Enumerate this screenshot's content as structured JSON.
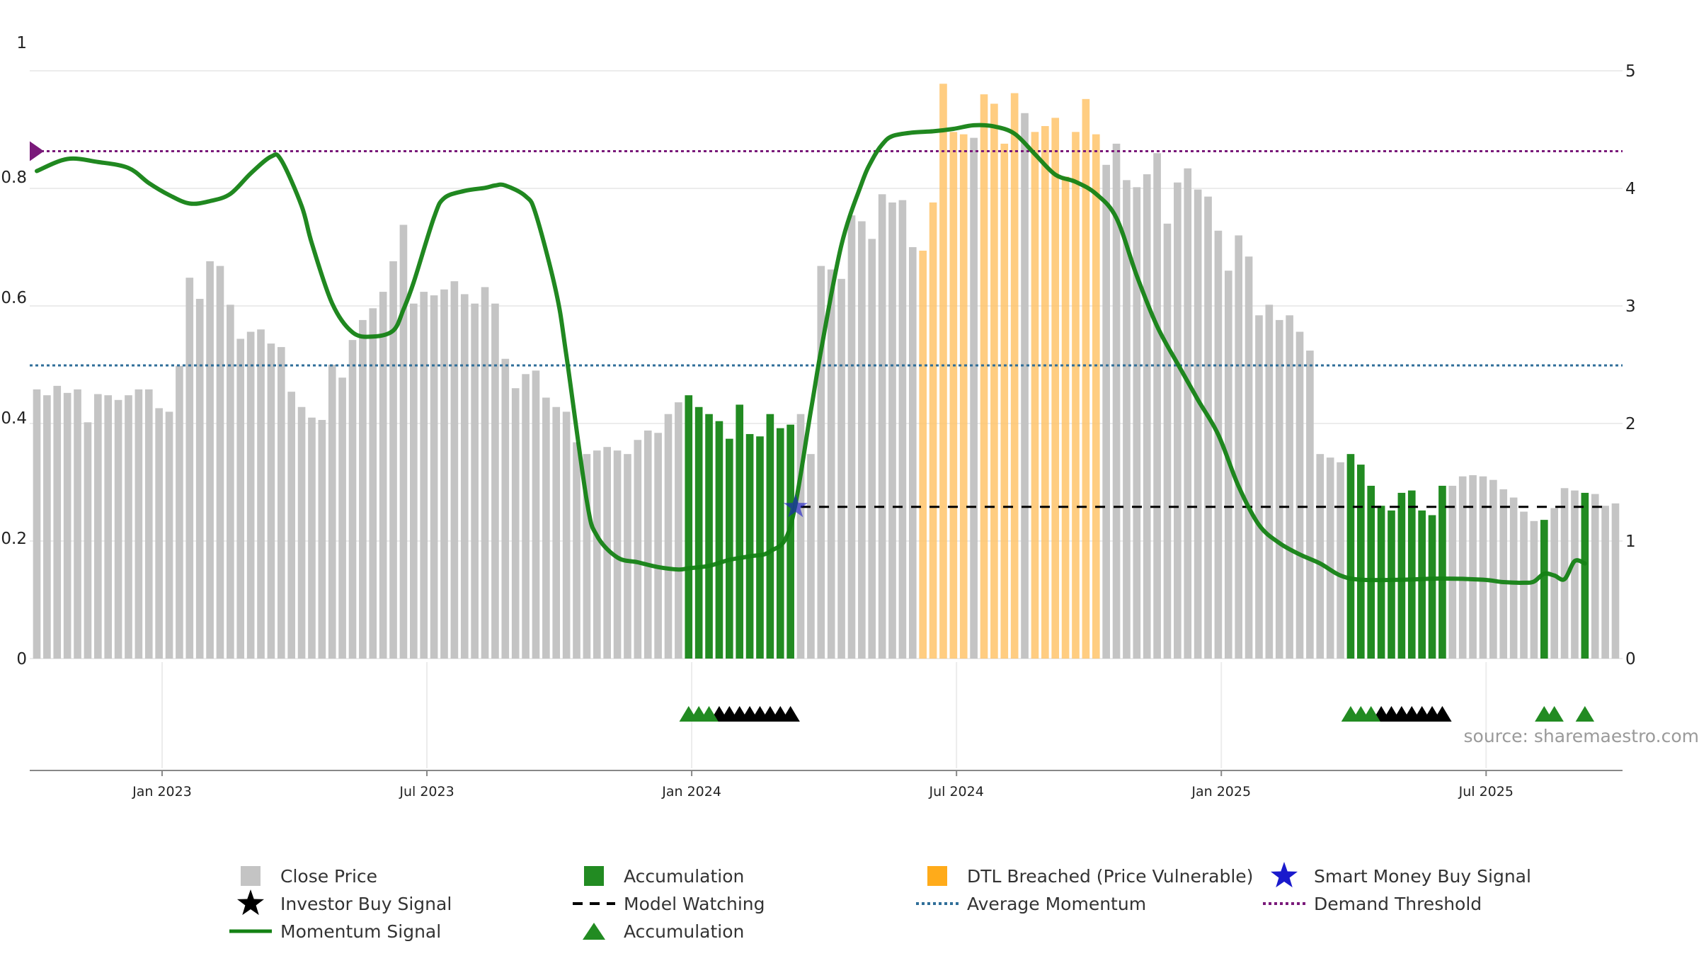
{
  "chart_data": {
    "type": "bar",
    "title": "",
    "xlabel": "",
    "ylabel": "",
    "y_left_ticks": [
      "0",
      "0.2",
      "0.4",
      "0.6",
      "0.8",
      "1"
    ],
    "y_left_range": [
      0,
      1
    ],
    "y_right_ticks": [
      "0",
      "1",
      "2",
      "3",
      "4",
      "5"
    ],
    "y_right_range": [
      0,
      5
    ],
    "x_ticks": [
      "Jan 2023",
      "Jul 2023",
      "Jan 2024",
      "Jul 2024",
      "Jan 2025",
      "Jul 2025"
    ],
    "x_range_weeks": [
      0,
      155
    ],
    "source": "source: sharemaestro.com",
    "colors": {
      "price": "#c4c4c4",
      "accumulation": "#228b22",
      "dtl": "#ffc46b",
      "momentum": "#148214",
      "average": "#2f6e99",
      "threshold": "#7a1a7a",
      "smart_money": "#1a1acc",
      "model_watching": "#000000"
    },
    "close_price_weekly": [
      2.29,
      2.24,
      2.32,
      2.26,
      2.29,
      2.01,
      2.25,
      2.24,
      2.2,
      2.24,
      2.29,
      2.29,
      2.13,
      2.1,
      2.49,
      3.24,
      3.06,
      3.38,
      3.34,
      3.01,
      2.72,
      2.78,
      2.8,
      2.68,
      2.65,
      2.27,
      2.14,
      2.05,
      2.03,
      2.5,
      2.39,
      2.71,
      2.88,
      2.98,
      3.12,
      3.38,
      3.69,
      3.02,
      3.12,
      3.09,
      3.14,
      3.21,
      3.1,
      3.02,
      3.16,
      3.02,
      2.55,
      2.3,
      2.42,
      2.45,
      2.22,
      2.14,
      2.1,
      1.84,
      1.74,
      1.77,
      1.8,
      1.77,
      1.74,
      1.86,
      1.94,
      1.92,
      2.08,
      2.18,
      2.24,
      2.14,
      2.08,
      2.02,
      1.87,
      2.16,
      1.91,
      1.89,
      2.08,
      1.96,
      1.99,
      2.08,
      1.74,
      3.34,
      3.31,
      3.23,
      3.77,
      3.72,
      3.57,
      3.95,
      3.88,
      3.9,
      3.5,
      3.47,
      3.88,
      4.89,
      4.48,
      4.46,
      4.43,
      4.8,
      4.72,
      4.38,
      4.81,
      4.64,
      4.48,
      4.53,
      4.6,
      4.1,
      4.48,
      4.76,
      4.46,
      4.2,
      4.38,
      4.07,
      4.01,
      4.12,
      4.3,
      3.7,
      4.05,
      4.17,
      3.99,
      3.93,
      3.64,
      3.3,
      3.6,
      3.42,
      2.92,
      3.01,
      2.88,
      2.92,
      2.78,
      2.62,
      1.74,
      1.71,
      1.67,
      1.74,
      1.65,
      1.47,
      1.3,
      1.26,
      1.41,
      1.43,
      1.26,
      1.22,
      1.47,
      1.47,
      1.55,
      1.56,
      1.55,
      1.52,
      1.44,
      1.37,
      1.25,
      1.17,
      1.18,
      1.28,
      1.45,
      1.43,
      1.41,
      1.4,
      1.3,
      1.32
    ],
    "series": [
      {
        "name": "Close Price",
        "kind": "bar",
        "axis": "right"
      },
      {
        "name": "Accumulation",
        "kind": "bar",
        "axis": "right",
        "week_ranges": [
          [
            64,
            74
          ],
          [
            129,
            138
          ],
          [
            148,
            148
          ],
          [
            152,
            152
          ]
        ]
      },
      {
        "name": "DTL Breached (Price Vulnerable)",
        "kind": "bar",
        "axis": "right",
        "week_ranges": [
          [
            87,
            91
          ],
          [
            93,
            96
          ],
          [
            98,
            104
          ]
        ]
      },
      {
        "name": "Momentum Signal",
        "kind": "line",
        "axis": "left",
        "weeks": [
          0,
          3,
          6,
          9,
          11,
          13,
          15,
          17,
          19,
          21,
          23,
          24,
          26,
          27,
          29,
          31,
          33,
          35,
          36,
          37,
          39,
          40,
          42,
          44,
          45,
          46,
          48,
          49,
          51,
          52,
          54,
          55,
          57,
          59,
          61,
          63,
          64,
          66,
          68,
          70,
          72,
          74,
          76,
          77,
          79,
          81,
          82,
          83,
          84,
          86,
          88,
          90,
          92,
          94,
          96,
          98,
          100,
          102,
          104,
          106,
          108,
          110,
          112,
          114,
          116,
          118,
          120,
          122,
          124,
          126,
          128,
          130,
          134,
          138,
          142,
          144,
          146,
          147,
          148,
          149,
          150,
          151,
          152
        ],
        "values": [
          0.81,
          0.83,
          0.825,
          0.815,
          0.79,
          0.77,
          0.756,
          0.76,
          0.772,
          0.806,
          0.834,
          0.828,
          0.752,
          0.69,
          0.59,
          0.542,
          0.535,
          0.545,
          0.58,
          0.625,
          0.733,
          0.765,
          0.777,
          0.782,
          0.786,
          0.786,
          0.768,
          0.738,
          0.608,
          0.503,
          0.262,
          0.204,
          0.168,
          0.16,
          0.152,
          0.148,
          0.15,
          0.154,
          0.164,
          0.17,
          0.178,
          0.22,
          0.412,
          0.512,
          0.687,
          0.79,
          0.828,
          0.854,
          0.868,
          0.874,
          0.876,
          0.88,
          0.886,
          0.884,
          0.872,
          0.838,
          0.804,
          0.792,
          0.772,
          0.732,
          0.636,
          0.552,
          0.49,
          0.43,
          0.372,
          0.286,
          0.222,
          0.192,
          0.173,
          0.158,
          0.138,
          0.131,
          0.131,
          0.133,
          0.131,
          0.127,
          0.126,
          0.128,
          0.141,
          0.138,
          0.132,
          0.162,
          0.158
        ]
      },
      {
        "name": "Average Momentum",
        "kind": "hline",
        "axis": "left",
        "value": 0.487
      },
      {
        "name": "Demand Threshold",
        "kind": "hline",
        "axis": "left",
        "value": 0.843
      },
      {
        "name": "Model Watching",
        "kind": "hline_segment",
        "axis": "left",
        "value": 0.252,
        "from_week": 75,
        "to_week": 154
      },
      {
        "name": "Smart Money Buy Signal",
        "kind": "marker",
        "axis": "left",
        "week": 74.5,
        "value": 0.252
      },
      {
        "name": "Accumulation",
        "kind": "triangle_markers",
        "weeks": [
          64,
          65,
          66,
          129,
          130,
          131,
          148,
          149,
          152
        ]
      },
      {
        "name": "Investor Buy Signal",
        "kind": "triangle_markers",
        "weeks": [
          67,
          68,
          69,
          70,
          71,
          72,
          73,
          74,
          132,
          133,
          134,
          135,
          136,
          137,
          138
        ]
      }
    ],
    "legend": {
      "placement": "bottom",
      "rows": [
        [
          "Close Price",
          "Accumulation",
          "DTL Breached (Price Vulnerable)",
          "Smart Money Buy Signal"
        ],
        [
          "Investor Buy Signal",
          "Model Watching",
          "Average Momentum",
          "Demand Threshold"
        ],
        [
          "Momentum Signal",
          "Accumulation"
        ]
      ],
      "symbols": [
        [
          "square-gray",
          "square-green",
          "square-orange",
          "star-blue"
        ],
        [
          "star-black",
          "dash-black",
          "dotted-blue",
          "dotted-purple"
        ],
        [
          "line-green",
          "triangle-green"
        ]
      ]
    }
  }
}
